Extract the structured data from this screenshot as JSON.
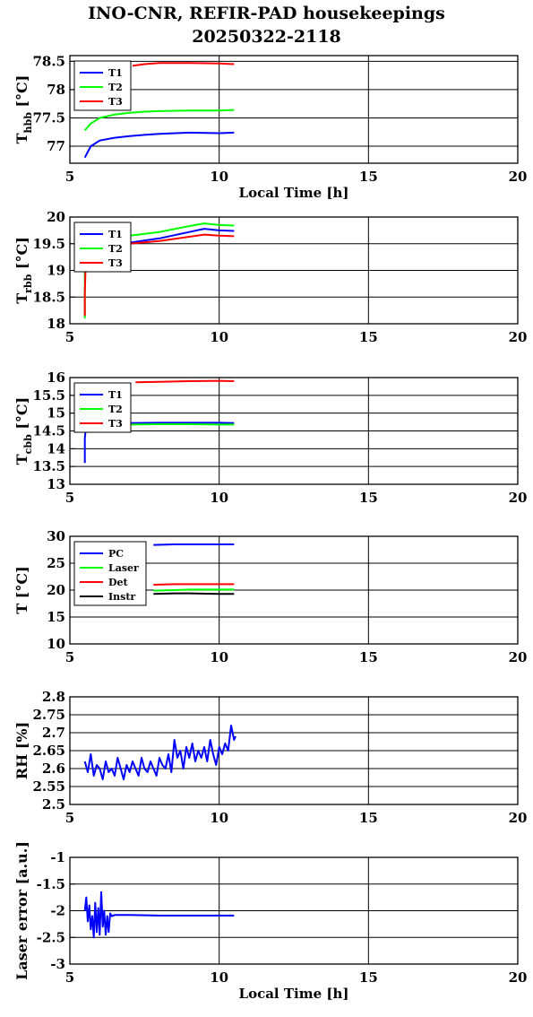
{
  "title_line1": "INO-CNR, REFIR-PAD housekeepings",
  "title_line2": "20250322-2118",
  "chart_data": [
    {
      "type": "line",
      "ylabel_main": "T",
      "ylabel_sub": "hbb",
      "ylabel_unit": "[°C]",
      "xlabel": "Local Time [h]",
      "xlim": [
        5,
        20
      ],
      "xticks": [
        "5",
        "10",
        "15",
        "20"
      ],
      "ylim": [
        76.7,
        78.6
      ],
      "yticks": [
        77,
        77.5,
        78,
        78.5
      ],
      "ytick_labels": [
        "77",
        "77.5",
        "78",
        "78.5"
      ],
      "grid": true,
      "legend_position": "top-left",
      "series": [
        {
          "name": "T1",
          "color": "#0000ff",
          "x": [
            5.5,
            5.7,
            6.0,
            6.5,
            7.0,
            7.5,
            8.0,
            9.0,
            10.0,
            10.5
          ],
          "y": [
            76.8,
            77.0,
            77.1,
            77.15,
            77.18,
            77.2,
            77.22,
            77.24,
            77.23,
            77.24
          ]
        },
        {
          "name": "T2",
          "color": "#00ff00",
          "x": [
            5.5,
            5.7,
            6.0,
            6.5,
            7.0,
            7.5,
            8.0,
            9.0,
            10.0,
            10.5
          ],
          "y": [
            77.28,
            77.4,
            77.5,
            77.56,
            77.59,
            77.61,
            77.62,
            77.63,
            77.63,
            77.64
          ]
        },
        {
          "name": "T3",
          "color": "#ff0000",
          "x": [
            7.1,
            7.5,
            8.0,
            9.0,
            10.0,
            10.5
          ],
          "y": [
            78.42,
            78.45,
            78.47,
            78.47,
            78.46,
            78.45
          ]
        }
      ]
    },
    {
      "type": "line",
      "ylabel_main": "T",
      "ylabel_sub": "rbb",
      "ylabel_unit": "[°C]",
      "xlabel": "",
      "xlim": [
        5,
        20
      ],
      "xticks": [
        "5",
        "10",
        "15",
        "20"
      ],
      "ylim": [
        18,
        20
      ],
      "yticks": [
        18,
        18.5,
        19,
        19.5,
        20
      ],
      "ytick_labels": [
        "18",
        "18.5",
        "19",
        "19.5",
        "20"
      ],
      "grid": true,
      "legend_position": "top-left",
      "series": [
        {
          "name": "T1",
          "color": "#0000ff",
          "x": [
            5.5,
            6.0,
            7.0,
            8.0,
            9.0,
            9.5,
            10.0,
            10.5
          ],
          "y": [
            19.55,
            19.5,
            19.52,
            19.6,
            19.72,
            19.78,
            19.75,
            19.74
          ]
        },
        {
          "name": "T2",
          "color": "#00ff00",
          "x": [
            5.5,
            5.5,
            5.55,
            6.0,
            7.0,
            8.0,
            9.0,
            9.5,
            10.0,
            10.5
          ],
          "y": [
            18.1,
            19.3,
            19.55,
            19.6,
            19.65,
            19.72,
            19.83,
            19.88,
            19.85,
            19.84
          ]
        },
        {
          "name": "T3",
          "color": "#ff0000",
          "x": [
            5.5,
            5.5,
            5.55,
            6.0,
            7.0,
            8.0,
            9.0,
            9.5,
            10.0,
            10.5
          ],
          "y": [
            18.15,
            18.6,
            19.45,
            19.48,
            19.5,
            19.55,
            19.63,
            19.67,
            19.65,
            19.64
          ]
        }
      ]
    },
    {
      "type": "line",
      "ylabel_main": "T",
      "ylabel_sub": "cbb",
      "ylabel_unit": "[°C]",
      "xlabel": "",
      "xlim": [
        5,
        20
      ],
      "xticks": [
        "5",
        "10",
        "15",
        "20"
      ],
      "ylim": [
        13,
        16
      ],
      "yticks": [
        13,
        13.5,
        14,
        14.5,
        15,
        15.5,
        16
      ],
      "ytick_labels": [
        "13",
        "13.5",
        "14",
        "14.5",
        "15",
        "15.5",
        "16"
      ],
      "grid": true,
      "legend_position": "top-left",
      "series": [
        {
          "name": "T1",
          "color": "#0000ff",
          "x": [
            5.5,
            5.5,
            5.55,
            6.0,
            7.0,
            8.0,
            9.0,
            10.0,
            10.5
          ],
          "y": [
            13.6,
            14.3,
            14.7,
            14.72,
            14.72,
            14.73,
            14.73,
            14.73,
            14.72
          ]
        },
        {
          "name": "T2",
          "color": "#00ff00",
          "x": [
            5.5,
            5.55,
            6.0,
            7.0,
            8.0,
            9.0,
            10.0,
            10.5
          ],
          "y": [
            14.5,
            14.68,
            14.68,
            14.68,
            14.69,
            14.69,
            14.68,
            14.68
          ]
        },
        {
          "name": "T3",
          "color": "#ff0000",
          "x": [
            7.2,
            8.0,
            9.0,
            10.0,
            10.5
          ],
          "y": [
            15.87,
            15.88,
            15.9,
            15.91,
            15.9
          ]
        }
      ]
    },
    {
      "type": "line",
      "ylabel_main": "T [°C]",
      "ylabel_sub": "",
      "ylabel_unit": "",
      "xlabel": "",
      "xlim": [
        5,
        20
      ],
      "xticks": [
        "5",
        "10",
        "15",
        "20"
      ],
      "ylim": [
        10,
        30
      ],
      "yticks": [
        10,
        15,
        20,
        25,
        30
      ],
      "ytick_labels": [
        "10",
        "15",
        "20",
        "25",
        "30"
      ],
      "grid": true,
      "legend_position": "top-left",
      "series": [
        {
          "name": "PC",
          "color": "#0000ff",
          "x": [
            7.8,
            8.5,
            9.0,
            10.0,
            10.5
          ],
          "y": [
            28.4,
            28.5,
            28.5,
            28.5,
            28.5
          ]
        },
        {
          "name": "Laser",
          "color": "#00ff00",
          "x": [
            7.8,
            8.5,
            9.0,
            10.0,
            10.5
          ],
          "y": [
            19.9,
            20.0,
            20.1,
            20.1,
            20.1
          ]
        },
        {
          "name": "Det",
          "color": "#ff0000",
          "x": [
            7.8,
            8.5,
            9.0,
            10.0,
            10.5
          ],
          "y": [
            21.0,
            21.1,
            21.1,
            21.1,
            21.1
          ]
        },
        {
          "name": "Instr",
          "color": "#000000",
          "x": [
            7.8,
            8.5,
            9.0,
            10.0,
            10.5
          ],
          "y": [
            19.3,
            19.4,
            19.4,
            19.3,
            19.3
          ]
        }
      ]
    },
    {
      "type": "line",
      "ylabel_main": "RH [%]",
      "ylabel_sub": "",
      "ylabel_unit": "",
      "xlabel": "",
      "xlim": [
        5,
        20
      ],
      "xticks": [
        "5",
        "10",
        "15",
        "20"
      ],
      "ylim": [
        2.5,
        2.8
      ],
      "yticks": [
        2.5,
        2.55,
        2.6,
        2.65,
        2.7,
        2.75,
        2.8
      ],
      "ytick_labels": [
        "2.5",
        "2.55",
        "2.6",
        "2.65",
        "2.7",
        "2.75",
        "2.8"
      ],
      "grid": true,
      "series": [
        {
          "name": "",
          "color": "#0000ff",
          "x": [
            5.5,
            5.6,
            5.7,
            5.8,
            5.9,
            6.0,
            6.1,
            6.2,
            6.3,
            6.4,
            6.5,
            6.6,
            6.7,
            6.8,
            6.9,
            7.0,
            7.1,
            7.2,
            7.3,
            7.4,
            7.5,
            7.6,
            7.7,
            7.8,
            7.9,
            8.0,
            8.1,
            8.2,
            8.3,
            8.4,
            8.5,
            8.6,
            8.7,
            8.8,
            8.9,
            9.0,
            9.1,
            9.2,
            9.3,
            9.4,
            9.5,
            9.6,
            9.7,
            9.8,
            9.9,
            10.0,
            10.1,
            10.2,
            10.3,
            10.4,
            10.5,
            10.55
          ],
          "y": [
            2.62,
            2.59,
            2.64,
            2.58,
            2.61,
            2.6,
            2.57,
            2.62,
            2.59,
            2.6,
            2.58,
            2.63,
            2.6,
            2.57,
            2.61,
            2.59,
            2.62,
            2.6,
            2.58,
            2.63,
            2.6,
            2.59,
            2.62,
            2.6,
            2.58,
            2.63,
            2.61,
            2.6,
            2.64,
            2.59,
            2.68,
            2.63,
            2.65,
            2.6,
            2.66,
            2.63,
            2.67,
            2.62,
            2.65,
            2.63,
            2.66,
            2.62,
            2.68,
            2.64,
            2.61,
            2.66,
            2.64,
            2.67,
            2.65,
            2.72,
            2.68,
            2.69
          ]
        }
      ]
    },
    {
      "type": "line",
      "ylabel_main": "Laser error [a.u.]",
      "ylabel_sub": "",
      "ylabel_unit": "",
      "xlabel": "Local Time [h]",
      "xlim": [
        5,
        20
      ],
      "xticks": [
        "5",
        "10",
        "15",
        "20"
      ],
      "ylim": [
        -3,
        -1
      ],
      "yticks": [
        -3,
        -2.5,
        -2,
        -1.5,
        -1
      ],
      "ytick_labels": [
        "-3",
        "-2.5",
        "-2",
        "-1.5",
        "-1"
      ],
      "grid": true,
      "series": [
        {
          "name": "",
          "color": "#0000ff",
          "x": [
            5.5,
            5.55,
            5.6,
            5.65,
            5.7,
            5.75,
            5.8,
            5.85,
            5.9,
            5.95,
            6.0,
            6.05,
            6.1,
            6.15,
            6.2,
            6.25,
            6.3,
            6.35,
            6.4,
            6.5,
            7.0,
            8.0,
            9.0,
            10.0,
            10.5
          ],
          "y": [
            -2.0,
            -1.75,
            -2.2,
            -1.9,
            -2.35,
            -2.1,
            -2.5,
            -1.85,
            -2.4,
            -1.95,
            -2.45,
            -1.65,
            -2.3,
            -2.0,
            -2.45,
            -2.1,
            -2.4,
            -2.05,
            -2.1,
            -2.08,
            -2.08,
            -2.09,
            -2.09,
            -2.09,
            -2.09
          ]
        }
      ]
    }
  ]
}
